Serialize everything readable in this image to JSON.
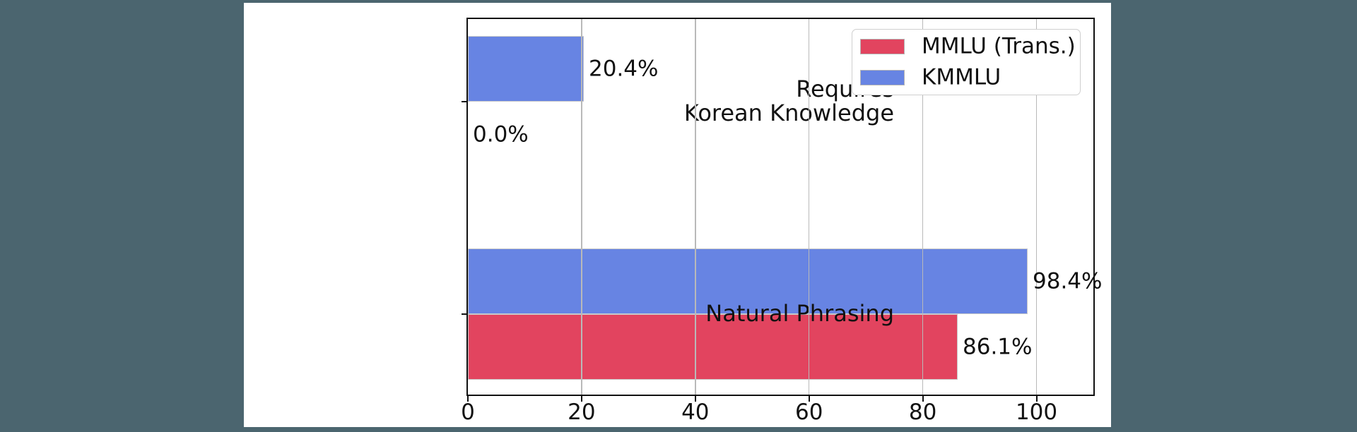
{
  "page": {
    "background_color": "#4B656F",
    "figure_background": "#ffffff"
  },
  "chart_data": {
    "type": "bar",
    "orientation": "horizontal",
    "title": "",
    "xlabel": "",
    "ylabel": "",
    "categories": [
      "Requires Korean Knowledge",
      "Natural Phrasing"
    ],
    "category_lines": [
      [
        "Requires",
        "Korean Knowledge"
      ],
      [
        "Natural Phrasing"
      ]
    ],
    "series": [
      {
        "name": "MMLU (Trans.)",
        "color": "#E2445F",
        "values": [
          0.0,
          86.1
        ],
        "value_labels": [
          "0.0%",
          "86.1%"
        ]
      },
      {
        "name": "KMMLU",
        "color": "#6784E3",
        "values": [
          20.4,
          98.4
        ],
        "value_labels": [
          "20.4%",
          "98.4%"
        ]
      }
    ],
    "xlim": [
      0,
      110
    ],
    "x_ticks": [
      0,
      20,
      40,
      60,
      80,
      100
    ],
    "x_tick_labels": [
      "0",
      "20",
      "40",
      "60",
      "80",
      "100"
    ],
    "grid": true,
    "grid_axis": "x",
    "legend_position": "upper right",
    "axis_color": "#111111",
    "grid_color": "#b9b9b9",
    "bar_edge_color": "#c9c9c9",
    "text_color": "#111111"
  }
}
